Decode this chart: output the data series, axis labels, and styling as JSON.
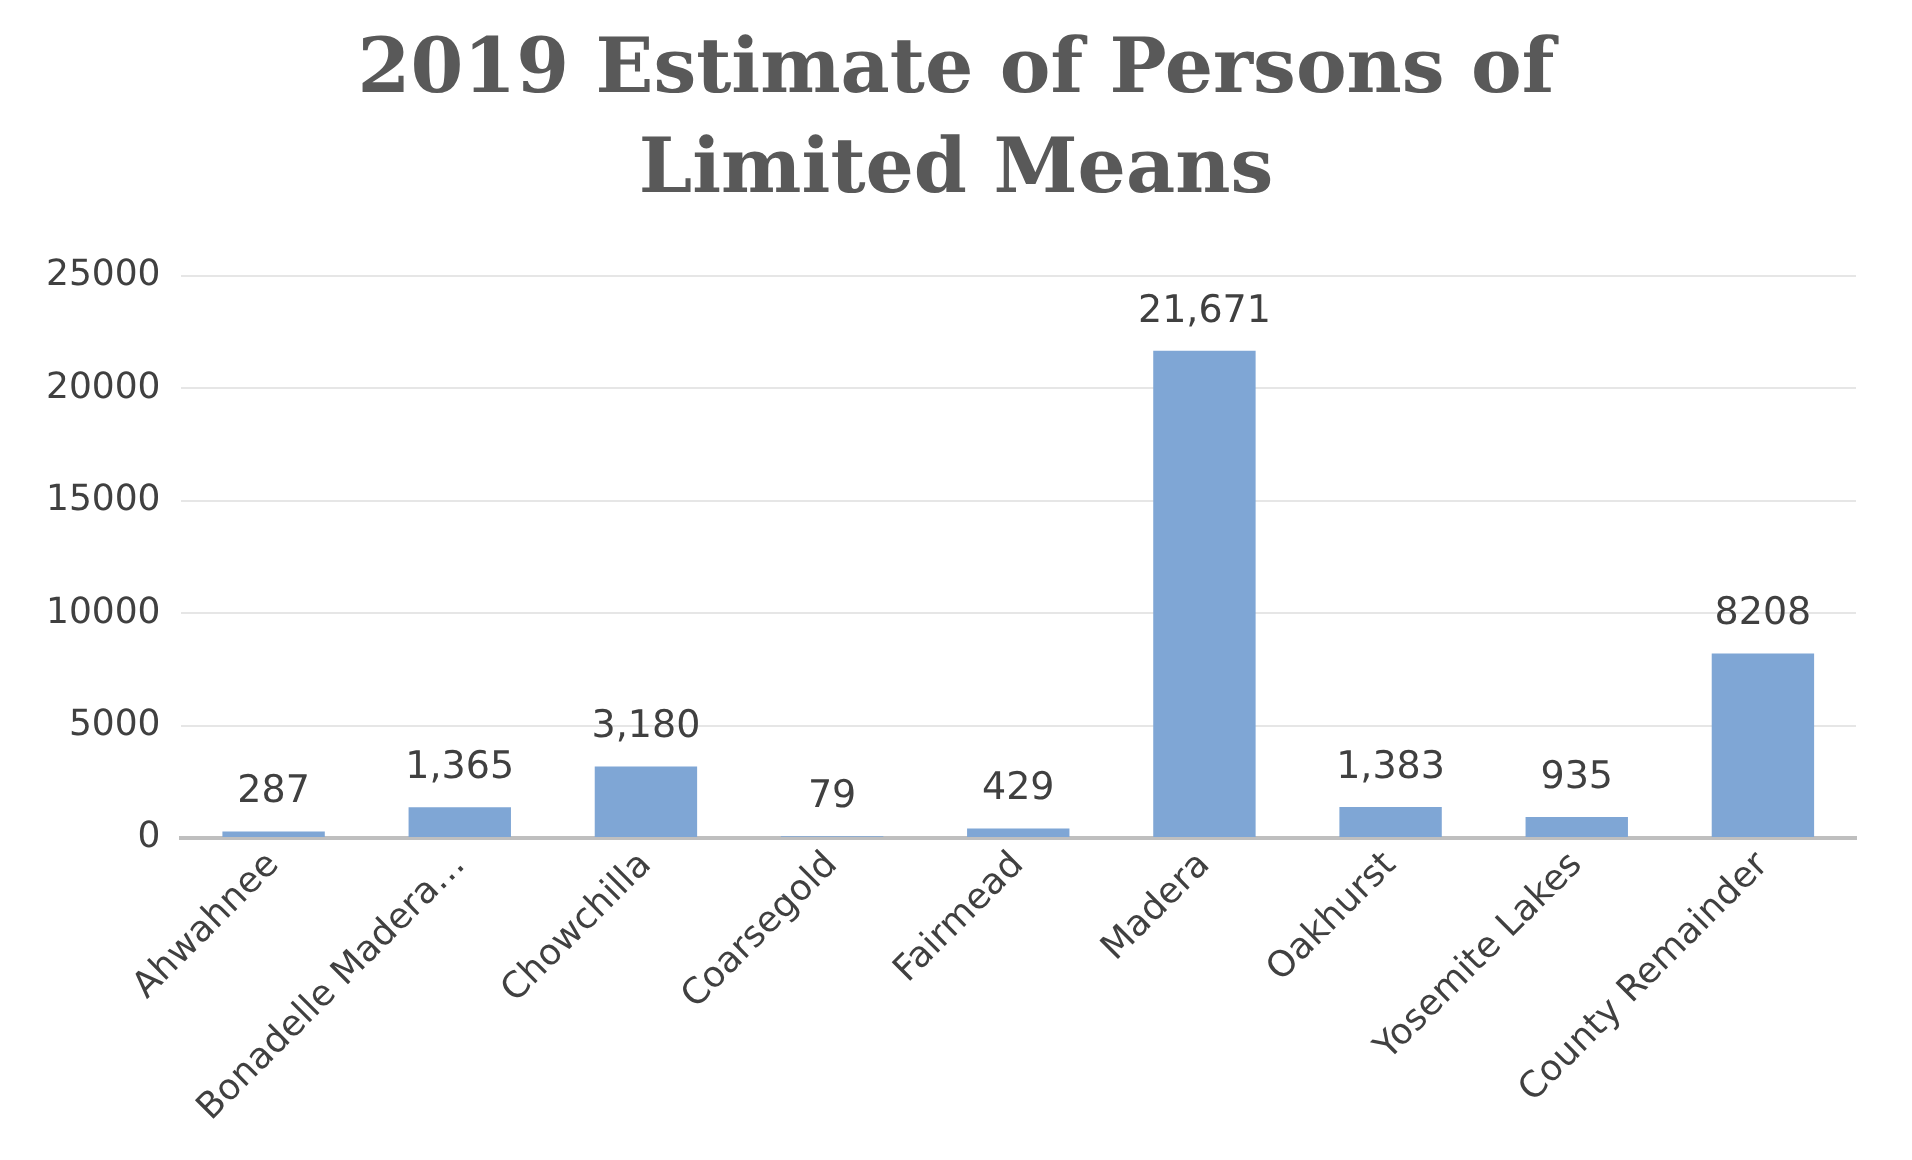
{
  "chart_data": {
    "type": "bar",
    "title": "2019 Estimate of Persons of Limited Means",
    "categories": [
      "Ahwahnee",
      "Bonadelle Madera…",
      "Chowchilla",
      "Coarsegold",
      "Fairmead",
      "Madera",
      "Oakhurst",
      "Yosemite Lakes",
      "County Remainder"
    ],
    "values": [
      287,
      1365,
      3180,
      79,
      429,
      21671,
      1383,
      935,
      8208
    ],
    "value_labels": [
      "287",
      "1,365",
      "3,180",
      "79",
      "429",
      "21,671",
      "1,383",
      "935",
      "8208"
    ],
    "color": "#7fa6d5",
    "ylim": [
      0,
      25000
    ],
    "yticks": [
      0,
      5000,
      10000,
      15000,
      20000,
      25000
    ],
    "grid": "y",
    "legend": false
  }
}
